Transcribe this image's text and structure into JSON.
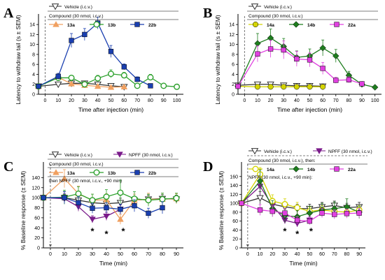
{
  "chart_data": [
    {
      "type": "line",
      "panel": "A",
      "xlabel": "Time after injection (min)",
      "ylabel": "Latency to withdraw tail (s ± SEM)",
      "xlim": [
        -5,
        105
      ],
      "ylim": [
        0,
        15
      ],
      "x_ticks": [
        0,
        10,
        20,
        30,
        40,
        50,
        60,
        70,
        80,
        90,
        100
      ],
      "y_ticks": [
        0,
        2,
        4,
        6,
        8,
        10,
        12,
        14
      ],
      "legend": {
        "vehicle": "Vehicle (i.c.v.)",
        "compound_header": "Compound (30 nmol, i.c.v.)",
        "entries": [
          "13a",
          "13b",
          "22b"
        ]
      },
      "series": [
        {
          "name": "Vehicle (i.c.v.)",
          "color": "#333333",
          "marker": "tri-down-open",
          "x": [
            -5,
            10,
            20,
            30,
            40,
            50,
            60
          ],
          "y": [
            1.6,
            2.0,
            2.2,
            2.2,
            2.0,
            1.7,
            1.5
          ],
          "err": [
            0.2,
            0.3,
            0.3,
            0.3,
            0.3,
            0.2,
            0.2
          ]
        },
        {
          "name": "13a",
          "color": "#f0a060",
          "marker": "tri-up",
          "x": [
            -5,
            10,
            20,
            30,
            40,
            50,
            60
          ],
          "y": [
            1.6,
            3.4,
            2.1,
            1.8,
            1.6,
            1.4,
            1.5
          ],
          "err": [
            0.2,
            0.5,
            0.3,
            0.2,
            0.2,
            0.2,
            0.2
          ]
        },
        {
          "name": "13b",
          "color": "#2ca02c",
          "marker": "circle-open",
          "x": [
            -5,
            10,
            20,
            30,
            40,
            50,
            60,
            70,
            80,
            90,
            100
          ],
          "y": [
            1.6,
            3.3,
            3.3,
            2.0,
            3.2,
            4.1,
            3.8,
            1.7,
            3.4,
            1.7,
            1.5
          ],
          "err": [
            0.2,
            0.5,
            0.5,
            0.4,
            0.6,
            0.8,
            0.6,
            0.3,
            0.6,
            0.3,
            0.2
          ]
        },
        {
          "name": "22b",
          "color": "#1a3fb0",
          "marker": "square",
          "x": [
            -5,
            10,
            20,
            30,
            40,
            50,
            60,
            70,
            80
          ],
          "y": [
            1.6,
            3.6,
            10.8,
            12.0,
            14.3,
            8.6,
            5.5,
            3.0,
            1.7
          ],
          "err": [
            0.2,
            0.6,
            1.4,
            1.2,
            1.2,
            1.2,
            0.6,
            0.5,
            0.3
          ]
        }
      ]
    },
    {
      "type": "line",
      "panel": "B",
      "xlabel": "Time after injection (min)",
      "ylabel": "Latency to withdraw tail (s ± SEM)",
      "xlim": [
        -5,
        105
      ],
      "ylim": [
        0,
        15
      ],
      "x_ticks": [
        0,
        10,
        20,
        30,
        40,
        50,
        60,
        70,
        80,
        90,
        100
      ],
      "y_ticks": [
        0,
        2,
        4,
        6,
        8,
        10,
        12,
        14
      ],
      "legend": {
        "vehicle": "Vehicle (i.c.v.)",
        "compound_header": "Compound (30 nmol, i.c.v.)",
        "entries": [
          "14a",
          "14b",
          "22a"
        ]
      },
      "series": [
        {
          "name": "Vehicle (i.c.v.)",
          "color": "#333333",
          "marker": "tri-down-open",
          "x": [
            -5,
            10,
            20,
            30,
            40,
            50,
            60
          ],
          "y": [
            1.8,
            2.0,
            2.0,
            1.8,
            1.7,
            1.7,
            1.6
          ],
          "err": [
            0.2,
            0.3,
            0.3,
            0.2,
            0.2,
            0.2,
            0.2
          ]
        },
        {
          "name": "14a",
          "color": "#d4d400",
          "marker": "circle",
          "x": [
            -5,
            10,
            20,
            30,
            40,
            50,
            60
          ],
          "y": [
            1.6,
            1.5,
            1.5,
            1.5,
            1.5,
            1.5,
            1.5
          ],
          "err": [
            0.2,
            0.2,
            0.2,
            0.2,
            0.2,
            0.2,
            0.2
          ]
        },
        {
          "name": "14b",
          "color": "#1e7d1e",
          "marker": "diamond",
          "x": [
            -5,
            10,
            20,
            30,
            40,
            50,
            60,
            70,
            80,
            90,
            100
          ],
          "y": [
            1.6,
            10.2,
            11.3,
            9.6,
            7.4,
            7.7,
            9.3,
            7.7,
            3.8,
            2.0,
            1.4
          ],
          "err": [
            0.2,
            2.0,
            1.8,
            1.6,
            1.3,
            1.4,
            1.6,
            1.3,
            0.8,
            0.4,
            0.2
          ]
        },
        {
          "name": "22a",
          "color": "#e040e0",
          "marker": "square",
          "x": [
            -5,
            10,
            20,
            30,
            40,
            50,
            60,
            70,
            80,
            90
          ],
          "y": [
            1.6,
            8.1,
            9.1,
            8.9,
            7.1,
            6.9,
            5.2,
            2.8,
            2.9,
            2.1
          ],
          "err": [
            0.2,
            1.6,
            1.7,
            1.8,
            1.5,
            1.4,
            1.2,
            0.6,
            0.6,
            0.4
          ]
        }
      ]
    },
    {
      "type": "line",
      "panel": "C",
      "xlabel": "Time (min)",
      "ylabel": "% Baseline response (± SEM)",
      "xlim": [
        -5,
        95
      ],
      "ylim": [
        0,
        160
      ],
      "x_ticks": [
        0,
        10,
        20,
        30,
        40,
        50,
        60,
        70,
        80,
        90
      ],
      "y_ticks": [
        0,
        20,
        40,
        60,
        80,
        100,
        120,
        140
      ],
      "legend": {
        "vehicle": "Vehicle (i.c.v.)",
        "npff": "NPFF (30 nmol, i.c.v.)",
        "compound_header": "Compound (30 nmol, i.c.v.)",
        "entries": [
          "13a",
          "13b",
          "22b"
        ],
        "footer": "then NPFF (30 nmol, i.c.v., +90 min)"
      },
      "annotations": [
        {
          "text": "*",
          "x": 30
        },
        {
          "text": "*",
          "x": 40
        },
        {
          "text": "*",
          "x": 50
        }
      ],
      "series": [
        {
          "name": "Vehicle (i.c.v.)",
          "color": "#333333",
          "marker": "tri-down-open",
          "x": [
            -5,
            10,
            20,
            30,
            40,
            50,
            60,
            70,
            80,
            90
          ],
          "y": [
            100,
            100,
            95,
            90,
            88,
            90,
            95,
            97,
            98,
            97
          ],
          "err": [
            0,
            12,
            10,
            9,
            9,
            9,
            8,
            8,
            8,
            8
          ]
        },
        {
          "name": "NPFF (30 nmol, i.c.v.)",
          "color": "#7a1a8a",
          "marker": "tri-down",
          "x": [
            -5,
            10,
            20,
            30,
            40,
            50
          ],
          "y": [
            100,
            98,
            82,
            57,
            63,
            77
          ],
          "err": [
            0,
            10,
            9,
            7,
            8,
            9
          ]
        },
        {
          "name": "13a",
          "color": "#f0a060",
          "marker": "tri-up",
          "x": [
            -5,
            10,
            20,
            30,
            40,
            50,
            60,
            70,
            80,
            90
          ],
          "y": [
            100,
            138,
            108,
            95,
            96,
            57,
            95,
            97,
            97,
            98
          ],
          "err": [
            0,
            18,
            15,
            12,
            12,
            10,
            12,
            12,
            12,
            10
          ]
        },
        {
          "name": "13b",
          "color": "#2ca02c",
          "marker": "circle-open",
          "x": [
            -5,
            10,
            20,
            30,
            40,
            50,
            60,
            70,
            80,
            90
          ],
          "y": [
            100,
            101,
            108,
            95,
            102,
            110,
            98,
            95,
            97,
            99
          ],
          "err": [
            0,
            14,
            14,
            12,
            14,
            25,
            14,
            12,
            12,
            10
          ]
        },
        {
          "name": "22b",
          "color": "#1a3fb0",
          "marker": "square",
          "x": [
            -5,
            10,
            20,
            30,
            40,
            50,
            60,
            70,
            80
          ],
          "y": [
            100,
            100,
            90,
            79,
            80,
            77,
            84,
            69,
            80
          ],
          "err": [
            0,
            12,
            12,
            10,
            10,
            10,
            12,
            10,
            12
          ]
        }
      ]
    },
    {
      "type": "line",
      "panel": "D",
      "xlabel": "Time (min)",
      "ylabel": "% Baseline response (± SEM)",
      "xlim": [
        -5,
        95
      ],
      "ylim": [
        0,
        180
      ],
      "x_ticks": [
        0,
        10,
        20,
        30,
        40,
        50,
        60,
        70,
        80,
        90
      ],
      "y_ticks": [
        0,
        20,
        40,
        60,
        80,
        100,
        120,
        140,
        160
      ],
      "legend": {
        "vehicle": "Vehicle (i.c.v.)",
        "npff": "NPFF (30 nmol, i.c.v.)",
        "compound_header": "Compound (30 nmol, i.c.v.), then:",
        "entries": [
          "14a",
          "14b",
          "22a"
        ],
        "footer": "NPFF (30 nmol, i.c.v., +90 min):"
      },
      "annotations": [
        {
          "text": "*",
          "x": 30
        },
        {
          "text": "*",
          "x": 40
        },
        {
          "text": "*",
          "x": 50
        }
      ],
      "series": [
        {
          "name": "Vehicle (i.c.v.)",
          "color": "#333333",
          "marker": "tri-down-open",
          "x": [
            -5,
            10,
            20,
            30,
            40,
            50,
            60,
            70,
            80,
            90
          ],
          "y": [
            100,
            112,
            98,
            92,
            88,
            88,
            92,
            95,
            90,
            92
          ],
          "err": [
            0,
            14,
            12,
            10,
            10,
            10,
            10,
            10,
            10,
            10
          ]
        },
        {
          "name": "NPFF (30 nmol, i.c.v.)",
          "color": "#7a1a8a",
          "marker": "tri-down",
          "x": [
            -5,
            10,
            20,
            30,
            40,
            50
          ],
          "y": [
            100,
            138,
            95,
            62,
            55,
            62
          ],
          "err": [
            0,
            20,
            14,
            8,
            8,
            8
          ]
        },
        {
          "name": "14a",
          "color": "#d4d400",
          "marker": "circle-open",
          "x": [
            -5,
            10,
            20,
            30,
            40,
            50,
            60,
            70,
            80,
            90
          ],
          "y": [
            100,
            165,
            105,
            98,
            90,
            82,
            85,
            82,
            80,
            85
          ],
          "err": [
            0,
            15,
            14,
            12,
            12,
            10,
            10,
            10,
            10,
            10
          ]
        },
        {
          "name": "14b",
          "color": "#1e7d1e",
          "marker": "diamond",
          "x": [
            -5,
            10,
            20,
            30,
            40,
            50,
            60,
            70,
            80,
            90
          ],
          "y": [
            100,
            150,
            88,
            72,
            70,
            78,
            85,
            88,
            92,
            80
          ],
          "err": [
            0,
            25,
            18,
            15,
            14,
            15,
            15,
            15,
            18,
            14
          ]
        },
        {
          "name": "22a",
          "color": "#e040e0",
          "marker": "square",
          "x": [
            -5,
            10,
            20,
            30,
            40,
            50,
            60,
            70,
            80,
            90
          ],
          "y": [
            100,
            85,
            82,
            78,
            62,
            60,
            78,
            75,
            77,
            78
          ],
          "err": [
            0,
            12,
            12,
            10,
            8,
            8,
            10,
            10,
            10,
            10
          ]
        }
      ]
    }
  ]
}
